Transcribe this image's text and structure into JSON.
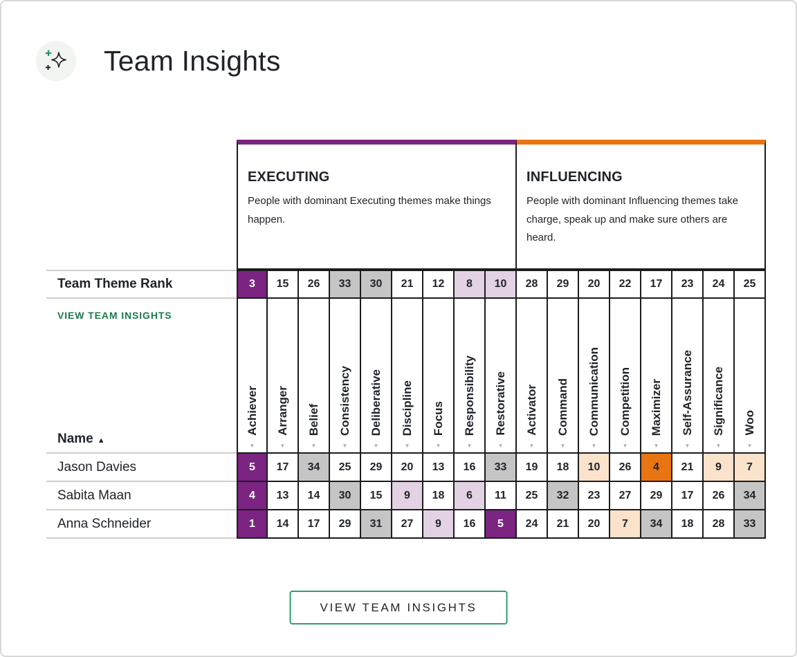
{
  "page": {
    "title": "Team Insights",
    "view_team_insights_link": "VIEW TEAM INSIGHTS",
    "view_team_insights_button": "VIEW TEAM INSIGHTS"
  },
  "icons": {
    "header_icon": "sparkle-star-with-plus-signs",
    "sort_indicator_down": "▼",
    "sort_indicator_up": "▲"
  },
  "colors": {
    "executing_dark": "#7B2482",
    "executing_light": "#E3D1E4",
    "influencing_dark": "#E87511",
    "influencing_light": "#FAE2CB",
    "low_rank_gray": "#C5C5C5",
    "cell_white": "#FFFFFF",
    "text_dark": "#20242A",
    "text_on_dark": "#FFFFFF",
    "link_green": "#1A7A4A",
    "button_border_green": "#2E9E6B",
    "icon_plus_green": "#1A9A62"
  },
  "table": {
    "rank_label": "Team Theme Rank",
    "name_label": "Name",
    "groups": [
      {
        "name": "EXECUTING",
        "description": "People with dominant Executing themes make things happen.",
        "color": "#7B2482",
        "themes": [
          "Achiever",
          "Arranger",
          "Belief",
          "Consistency",
          "Deliberative",
          "Discipline",
          "Focus",
          "Responsibility",
          "Restorative"
        ]
      },
      {
        "name": "INFLUENCING",
        "description": "People with dominant Influencing themes take charge, speak up and make sure others are heard.",
        "color": "#E87511",
        "themes": [
          "Activator",
          "Command",
          "Communication",
          "Competition",
          "Maximizer",
          "Self-Assurance",
          "Significance",
          "Woo"
        ]
      }
    ],
    "team_theme_rank": [
      3,
      15,
      26,
      33,
      30,
      21,
      12,
      8,
      10,
      28,
      29,
      20,
      22,
      17,
      23,
      24,
      25
    ],
    "team_theme_rank_styles": [
      "dark-purple",
      "none",
      "none",
      "gray",
      "gray",
      "none",
      "none",
      "light-purple",
      "light-purple",
      "none",
      "none",
      "none",
      "none",
      "none",
      "none",
      "none",
      "none"
    ],
    "members": [
      {
        "name": "Jason Davies",
        "values": [
          5,
          17,
          34,
          25,
          29,
          20,
          13,
          16,
          33,
          19,
          18,
          10,
          26,
          4,
          21,
          9,
          7
        ],
        "styles": [
          "dark-purple",
          "none",
          "gray",
          "none",
          "none",
          "none",
          "none",
          "none",
          "gray",
          "none",
          "none",
          "light-orange",
          "none",
          "dark-orange",
          "none",
          "light-orange",
          "light-orange"
        ]
      },
      {
        "name": "Sabita Maan",
        "values": [
          4,
          13,
          14,
          30,
          15,
          9,
          18,
          6,
          11,
          25,
          32,
          23,
          27,
          29,
          17,
          26,
          34
        ],
        "styles": [
          "dark-purple",
          "none",
          "none",
          "gray",
          "none",
          "light-purple",
          "none",
          "light-purple",
          "none",
          "none",
          "gray",
          "none",
          "none",
          "none",
          "none",
          "none",
          "gray"
        ]
      },
      {
        "name": "Anna Schneider",
        "values": [
          1,
          14,
          17,
          29,
          31,
          27,
          9,
          16,
          5,
          24,
          21,
          20,
          7,
          34,
          18,
          28,
          33
        ],
        "styles": [
          "dark-purple",
          "none",
          "none",
          "none",
          "gray",
          "none",
          "light-purple",
          "none",
          "dark-purple",
          "none",
          "none",
          "none",
          "light-orange",
          "gray",
          "none",
          "none",
          "gray"
        ]
      }
    ]
  }
}
